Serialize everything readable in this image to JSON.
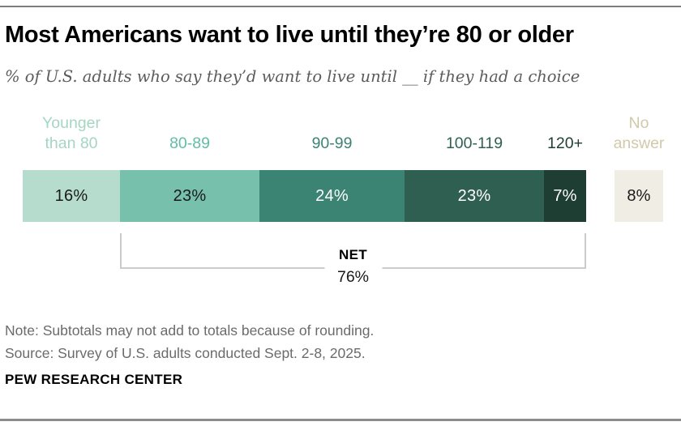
{
  "header": {
    "title": "Most Americans want to live until they’re 80 or older",
    "subtitle": "% of U.S. adults who say they’d want to live until __ if they had a choice"
  },
  "chart_data": {
    "type": "bar",
    "orientation": "horizontal",
    "stacked": true,
    "unit": "%",
    "categories": [
      "Younger than 80",
      "80-89",
      "90-99",
      "100-119",
      "120+",
      "No answer"
    ],
    "values": [
      16,
      23,
      24,
      23,
      7,
      8
    ],
    "segments": [
      {
        "label": "Younger\nthan 80",
        "value": 16,
        "display": "16%",
        "color": "#b6dcce",
        "label_color": "#a4d6c3",
        "text_color": "#1a1a1a",
        "detached": false
      },
      {
        "label": "80-89",
        "value": 23,
        "display": "23%",
        "color": "#77c1ac",
        "label_color": "#62bda4",
        "text_color": "#1a1a1a",
        "detached": false
      },
      {
        "label": "90-99",
        "value": 24,
        "display": "24%",
        "color": "#3b8473",
        "label_color": "#3b8473",
        "text_color": "#ffffff",
        "detached": false
      },
      {
        "label": "100-119",
        "value": 23,
        "display": "23%",
        "color": "#2f5f51",
        "label_color": "#2e6154",
        "text_color": "#ffffff",
        "detached": false
      },
      {
        "label": "120+",
        "value": 7,
        "display": "7%",
        "color": "#1e3d33",
        "label_color": "#1e3d33",
        "text_color": "#ffffff",
        "detached": false
      },
      {
        "label": "No\nanswer",
        "value": 8,
        "display": "8%",
        "color": "#efede4",
        "label_color": "#d2c9ab",
        "text_color": "#1a1a1a",
        "detached": true
      }
    ],
    "net": {
      "label": "NET",
      "display": "76%",
      "value": 76,
      "covers": [
        "80-89",
        "90-99",
        "100-119",
        "120+"
      ]
    }
  },
  "footer": {
    "note": "Note: Subtotals may not add to totals because of rounding.",
    "source": "Source: Survey of U.S. adults conducted Sept. 2-8, 2025.",
    "brand": "PEW RESEARCH CENTER"
  }
}
